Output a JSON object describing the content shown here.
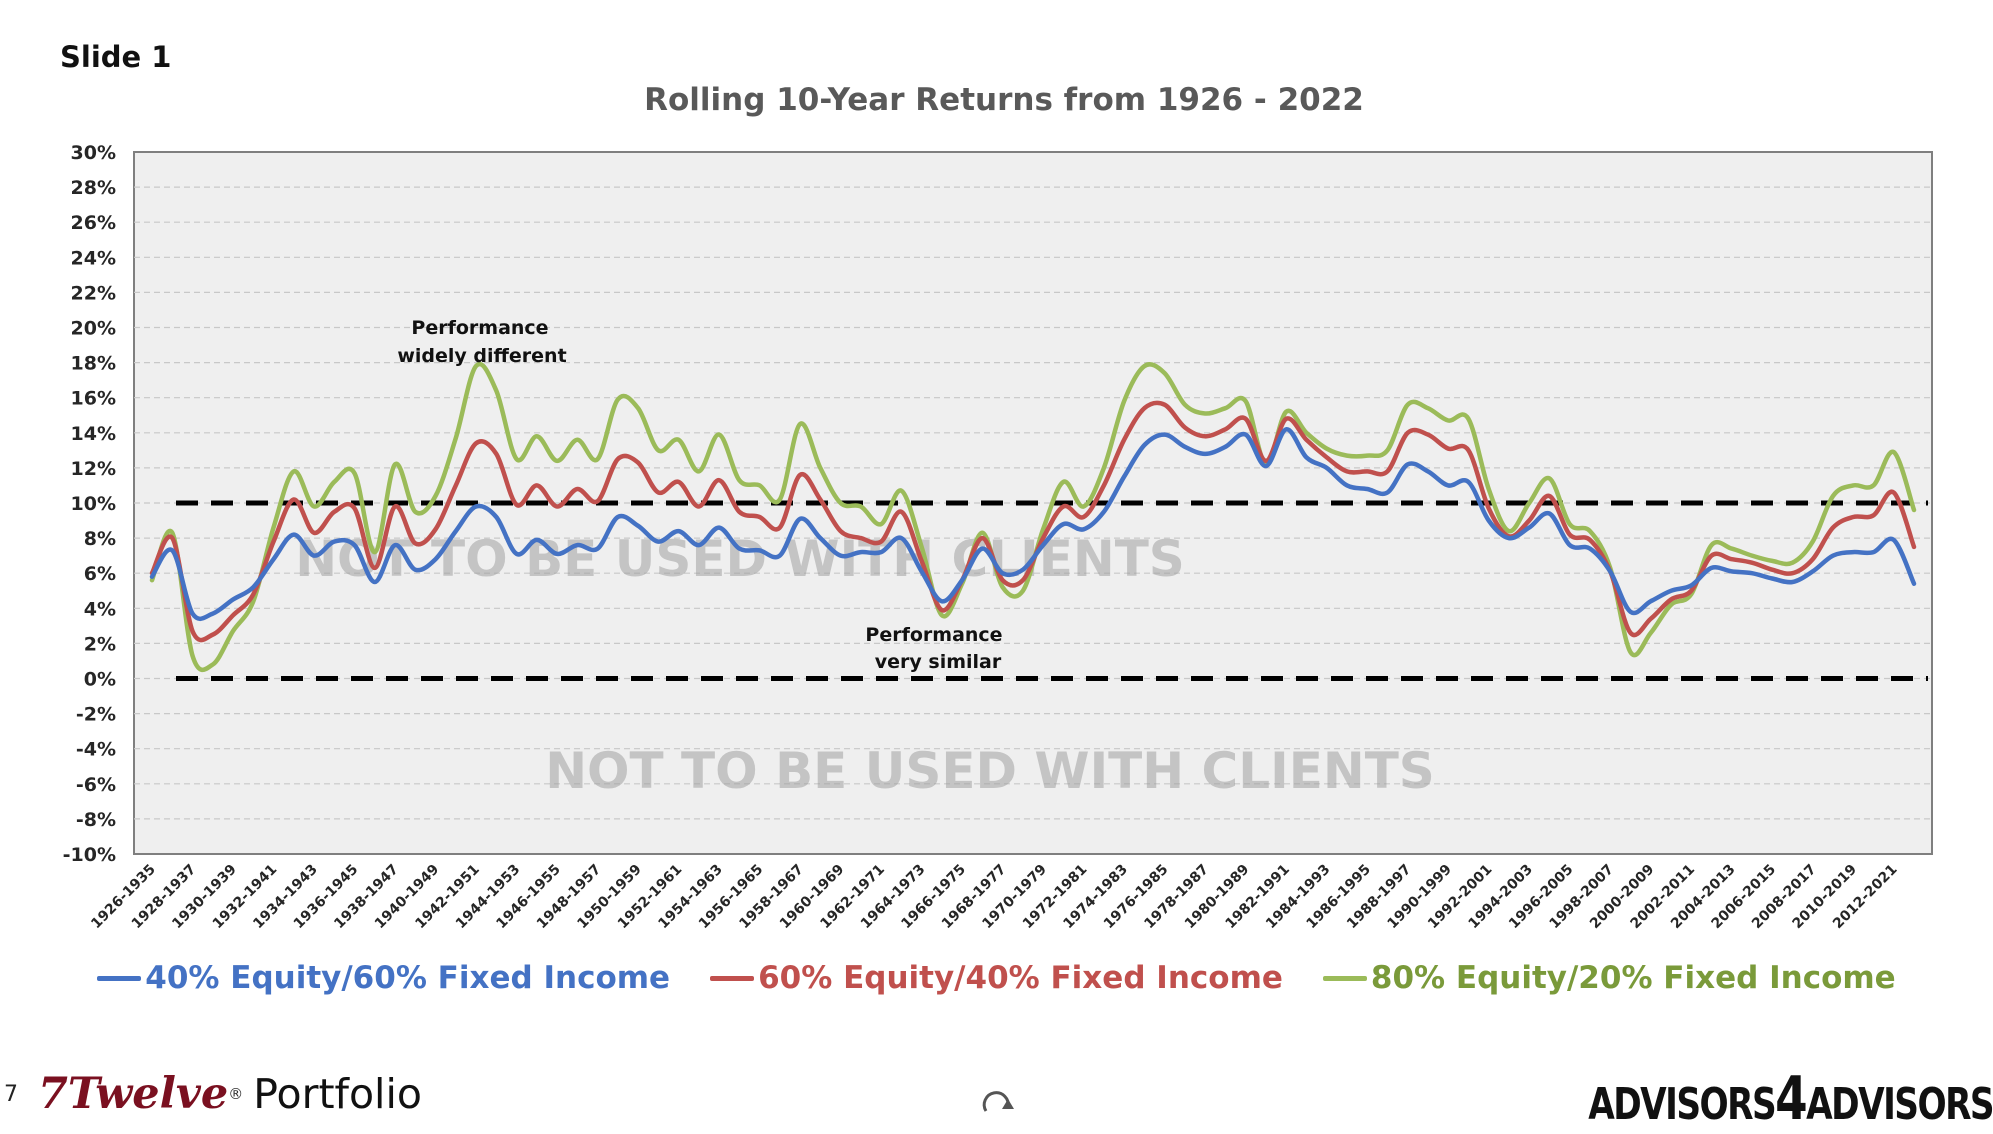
{
  "slide_label": "Slide 1",
  "page_number": "7",
  "brand": {
    "name": "7Twelve",
    "reg": "®",
    "suffix": "Portfolio"
  },
  "logo": {
    "left": "ADVISORS",
    "middle": "4",
    "right": "ADVISORS"
  },
  "icons": {
    "refresh": "refresh-icon"
  },
  "annotations": [
    {
      "lines": [
        "Performance",
        "widely different"
      ]
    },
    {
      "lines": [
        "Performance",
        "very similar"
      ]
    }
  ],
  "watermark": "NOT TO BE USED WITH CLIENTS",
  "chart_data": {
    "type": "line",
    "title": "Rolling 10-Year Returns from 1926 - 2022",
    "xlabel": "",
    "ylabel": "",
    "ylim": [
      -10,
      30
    ],
    "ytick_step": 2,
    "y_format": "percent",
    "grid": true,
    "legend_position": "bottom",
    "reference_lines": [
      0,
      10
    ],
    "x": [
      "1926-1935",
      "1927-1936",
      "1928-1937",
      "1929-1938",
      "1930-1939",
      "1931-1940",
      "1932-1941",
      "1933-1942",
      "1934-1943",
      "1935-1944",
      "1936-1945",
      "1937-1946",
      "1938-1947",
      "1939-1948",
      "1940-1949",
      "1941-1950",
      "1942-1951",
      "1943-1952",
      "1944-1953",
      "1945-1954",
      "1946-1955",
      "1947-1956",
      "1948-1957",
      "1949-1958",
      "1950-1959",
      "1951-1960",
      "1952-1961",
      "1953-1962",
      "1954-1963",
      "1955-1964",
      "1956-1965",
      "1957-1966",
      "1958-1967",
      "1959-1968",
      "1960-1969",
      "1961-1970",
      "1962-1971",
      "1963-1972",
      "1964-1973",
      "1965-1974",
      "1966-1975",
      "1967-1976",
      "1968-1977",
      "1969-1978",
      "1970-1979",
      "1971-1980",
      "1972-1981",
      "1973-1982",
      "1974-1983",
      "1975-1984",
      "1976-1985",
      "1977-1986",
      "1978-1987",
      "1979-1988",
      "1980-1989",
      "1981-1990",
      "1982-1991",
      "1983-1992",
      "1984-1993",
      "1985-1994",
      "1986-1995",
      "1987-1996",
      "1988-1997",
      "1989-1998",
      "1990-1999",
      "1991-2000",
      "1992-2001",
      "1993-2002",
      "1994-2003",
      "1995-2004",
      "1996-2005",
      "1997-2006",
      "1998-2007",
      "1999-2008",
      "2000-2009",
      "2001-2010",
      "2002-2011",
      "2003-2012",
      "2004-2013",
      "2005-2014",
      "2006-2015",
      "2007-2016",
      "2008-2017",
      "2009-2018",
      "2010-2019",
      "2011-2020",
      "2012-2021",
      "2013-2022"
    ],
    "tick_labels_shown_every": 2,
    "series": [
      {
        "name": "40% Equity/60% Fixed Income",
        "color": "#4472c4",
        "values": [
          5.8,
          7.3,
          3.7,
          3.7,
          4.5,
          5.2,
          6.8,
          8.2,
          7.0,
          7.8,
          7.6,
          5.5,
          7.6,
          6.2,
          6.8,
          8.4,
          9.8,
          9.2,
          7.1,
          7.9,
          7.1,
          7.6,
          7.4,
          9.2,
          8.7,
          7.8,
          8.4,
          7.6,
          8.6,
          7.4,
          7.3,
          7.0,
          9.1,
          8.0,
          7.0,
          7.2,
          7.2,
          8.0,
          6.1,
          4.4,
          5.6,
          7.4,
          6.0,
          6.2,
          7.6,
          8.8,
          8.5,
          9.5,
          11.5,
          13.3,
          13.9,
          13.2,
          12.8,
          13.2,
          13.9,
          12.1,
          14.2,
          12.6,
          12.0,
          11.0,
          10.8,
          10.6,
          12.2,
          11.8,
          11.0,
          11.2,
          9.0,
          8.0,
          8.6,
          9.4,
          7.6,
          7.4,
          6.1,
          3.8,
          4.4,
          5.0,
          5.3,
          6.3,
          6.1,
          6.0,
          5.7,
          5.5,
          6.1,
          7.0,
          7.2,
          7.2,
          7.9,
          5.4
        ]
      },
      {
        "name": "60% Equity/40% Fixed Income",
        "color": "#c0504d",
        "values": [
          6.0,
          8.0,
          2.7,
          2.5,
          3.6,
          4.8,
          7.8,
          10.2,
          8.3,
          9.5,
          9.7,
          6.3,
          9.8,
          7.7,
          8.5,
          11.0,
          13.4,
          12.8,
          9.9,
          11.0,
          9.8,
          10.8,
          10.1,
          12.5,
          12.3,
          10.6,
          11.2,
          9.8,
          11.3,
          9.5,
          9.2,
          8.6,
          11.6,
          10.2,
          8.4,
          8.0,
          7.8,
          9.5,
          6.7,
          3.9,
          5.6,
          8.0,
          5.6,
          5.6,
          8.0,
          9.8,
          9.2,
          11.0,
          13.6,
          15.4,
          15.6,
          14.3,
          13.8,
          14.2,
          14.8,
          12.4,
          14.8,
          13.6,
          12.6,
          11.8,
          11.8,
          11.8,
          14.0,
          13.9,
          13.1,
          13.0,
          9.7,
          8.1,
          9.0,
          10.4,
          8.2,
          7.9,
          6.1,
          2.6,
          3.4,
          4.5,
          5.0,
          7.0,
          6.8,
          6.6,
          6.2,
          6.0,
          6.8,
          8.6,
          9.2,
          9.3,
          10.6,
          7.5
        ]
      },
      {
        "name": "80% Equity/20% Fixed Income",
        "color": "#9bbb59",
        "values": [
          5.6,
          8.3,
          1.3,
          0.8,
          2.7,
          4.4,
          8.6,
          11.8,
          9.8,
          11.2,
          11.7,
          7.2,
          12.2,
          9.5,
          10.4,
          13.7,
          17.8,
          16.4,
          12.5,
          13.8,
          12.4,
          13.6,
          12.5,
          15.9,
          15.4,
          13.0,
          13.6,
          11.8,
          13.9,
          11.3,
          11.0,
          10.2,
          14.5,
          12.0,
          10.0,
          9.8,
          8.8,
          10.7,
          7.5,
          3.6,
          5.4,
          8.3,
          5.2,
          5.0,
          8.5,
          11.2,
          9.8,
          12.0,
          15.8,
          17.8,
          17.4,
          15.6,
          15.1,
          15.4,
          15.8,
          12.2,
          15.2,
          14.0,
          13.1,
          12.7,
          12.7,
          13.0,
          15.6,
          15.4,
          14.7,
          14.8,
          10.8,
          8.4,
          10.0,
          11.4,
          8.8,
          8.4,
          6.3,
          1.5,
          2.6,
          4.2,
          4.8,
          7.6,
          7.4,
          7.0,
          6.7,
          6.6,
          7.8,
          10.4,
          11.0,
          11.0,
          12.9,
          9.6
        ]
      }
    ]
  }
}
